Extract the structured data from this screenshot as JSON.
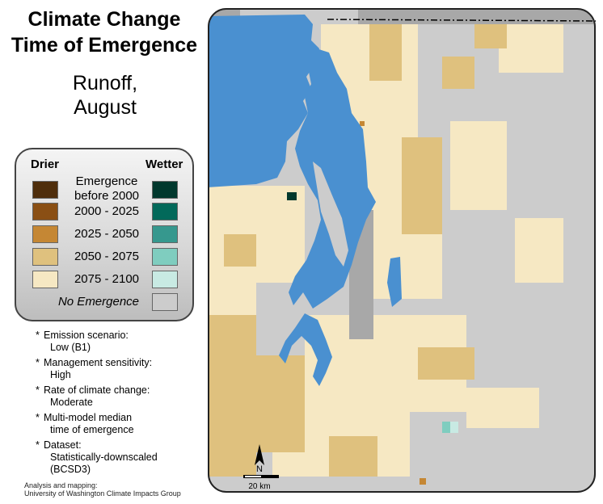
{
  "title": {
    "line1": "Climate Change",
    "line2": "Time of Emergence"
  },
  "subtitle": {
    "line1": "Runoff,",
    "line2": "August"
  },
  "legend": {
    "drier_label": "Drier",
    "wetter_label": "Wetter",
    "rows": [
      {
        "label_line1": "Emergence",
        "label_line2": "before 2000",
        "drier_color": "#4f2e0c",
        "wetter_color": "#01382d"
      },
      {
        "label_line1": "2000 - 2025",
        "label_line2": "",
        "drier_color": "#8a4f14",
        "wetter_color": "#02695a"
      },
      {
        "label_line1": "2025 - 2050",
        "label_line2": "",
        "drier_color": "#c58734",
        "wetter_color": "#36988e"
      },
      {
        "label_line1": "2050 - 2075",
        "label_line2": "",
        "drier_color": "#dfc17e",
        "wetter_color": "#7fcdbf"
      },
      {
        "label_line1": "2075 - 2100",
        "label_line2": "",
        "drier_color": "#f6e8c3",
        "wetter_color": "#c8eae3"
      }
    ],
    "no_emergence_label": "No Emergence",
    "no_emergence_color": "#cccccc"
  },
  "notes": [
    {
      "line1": "Emission scenario:",
      "line2": "Low (B1)"
    },
    {
      "line1": "Management sensitivity:",
      "line2": "High"
    },
    {
      "line1": "Rate of climate change:",
      "line2": "Moderate"
    },
    {
      "line1": "Multi-model median",
      "line2": "time of emergence"
    },
    {
      "line1": "Dataset:",
      "line2": "Statistically-downscaled",
      "line3": "(BCSD3)"
    }
  ],
  "credit": {
    "line1": "Analysis and mapping:",
    "line2": "University of Washington Climate Impacts Group"
  },
  "map": {
    "north_label": "N",
    "scale_label": "20 km",
    "water_color": "#4a90d0",
    "nodata_color": "#a8a8a8"
  }
}
